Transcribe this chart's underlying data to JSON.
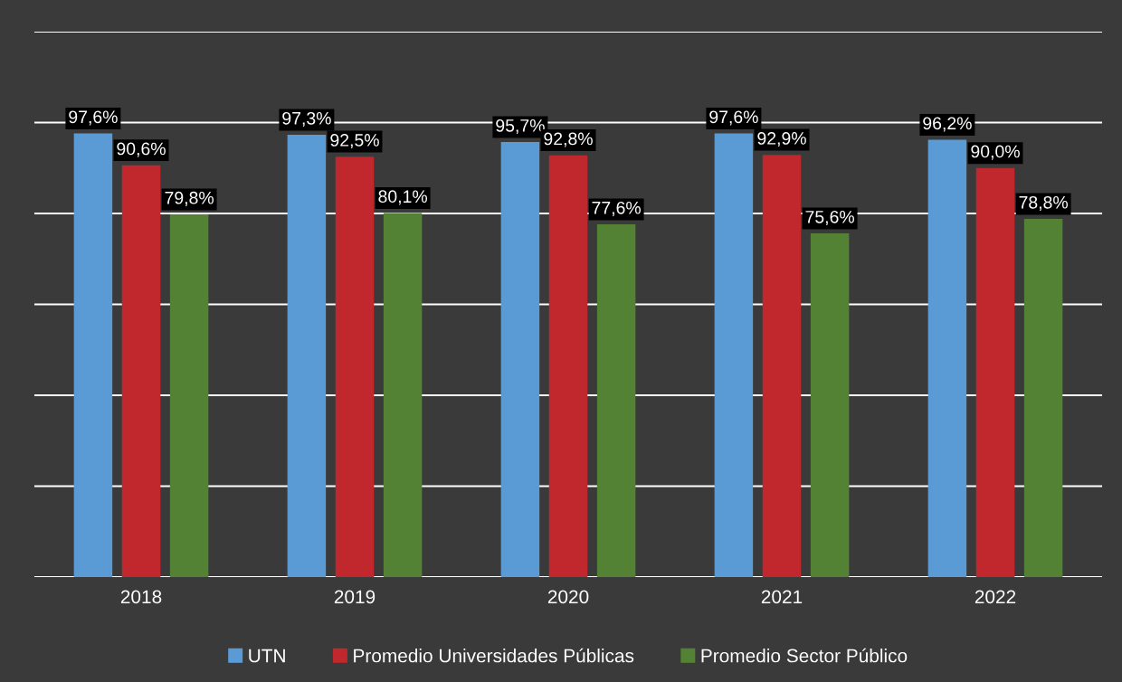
{
  "chart_data": {
    "type": "bar",
    "categories": [
      "2018",
      "2019",
      "2020",
      "2021",
      "2022"
    ],
    "series": [
      {
        "name": "UTN",
        "color": "#5b9bd5",
        "values": [
          97.6,
          97.3,
          95.7,
          97.6,
          96.2
        ],
        "value_labels": [
          "97,6%",
          "97,3%",
          "95,7%",
          "97,6%",
          "96,2%"
        ]
      },
      {
        "name": "Promedio Universidades Públicas",
        "color": "#c0282d",
        "values": [
          90.6,
          92.5,
          92.8,
          92.9,
          90.0
        ],
        "value_labels": [
          "90,6%",
          "92,5%",
          "92,8%",
          "92,9%",
          "90,0%"
        ]
      },
      {
        "name": "Promedio Sector Público",
        "color": "#548235",
        "values": [
          79.8,
          80.1,
          77.6,
          75.6,
          78.8
        ],
        "value_labels": [
          "79,8%",
          "80,1%",
          "77,6%",
          "75,6%",
          "78,8%"
        ]
      }
    ],
    "ylim": [
      0,
      120
    ],
    "yticks": [
      {
        "value": 0,
        "label": null
      },
      {
        "value": 20,
        "label": null
      },
      {
        "value": 40,
        "label": null
      },
      {
        "value": 60,
        "label": null
      },
      {
        "value": 80,
        "label": null
      },
      {
        "value": 100,
        "label": null
      },
      {
        "value": 120,
        "label": null
      }
    ],
    "tick_labels": "x",
    "grid": "y",
    "legend": "bottom"
  }
}
